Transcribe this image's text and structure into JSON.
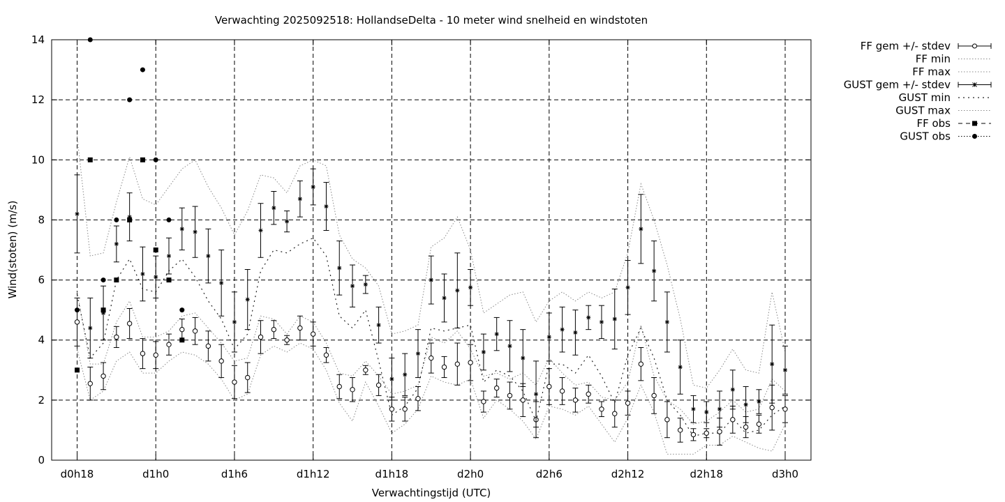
{
  "chart_data": {
    "type": "scatter",
    "title": "Verwachting 2025092518: HollandseDelta - 10 meter wind snelheid en windstoten",
    "xlabel": "Verwachtingstijd (UTC)",
    "ylabel": "Wind(stoten) (m/s)",
    "xlim": [
      18,
      74
    ],
    "ylim": [
      0,
      14
    ],
    "x_unit": "hours since d0h0",
    "xticks": [
      {
        "x": 18,
        "label": "d0h18"
      },
      {
        "x": 24,
        "label": "d1h0"
      },
      {
        "x": 30,
        "label": "d1h6"
      },
      {
        "x": 36,
        "label": "d1h12"
      },
      {
        "x": 42,
        "label": "d1h18"
      },
      {
        "x": 48,
        "label": "d2h0"
      },
      {
        "x": 54,
        "label": "d2h6"
      },
      {
        "x": 60,
        "label": "d2h12"
      },
      {
        "x": 66,
        "label": "d2h18"
      },
      {
        "x": 72,
        "label": "d3h0"
      }
    ],
    "yticks": [
      0,
      2,
      4,
      6,
      8,
      10,
      12,
      14
    ],
    "grid": true,
    "legend_position": "outside-top-right",
    "legend": [
      "FF gem +/- stdev",
      "FF min",
      "FF max",
      "GUST gem +/- stdev",
      "GUST min",
      "GUST max",
      "FF obs",
      "GUST obs"
    ],
    "x": [
      18,
      19,
      20,
      21,
      22,
      23,
      24,
      25,
      26,
      27,
      28,
      29,
      30,
      31,
      32,
      33,
      34,
      35,
      36,
      37,
      38,
      39,
      40,
      41,
      42,
      43,
      44,
      45,
      46,
      47,
      48,
      49,
      50,
      51,
      52,
      53,
      54,
      55,
      56,
      57,
      58,
      59,
      60,
      61,
      62,
      63,
      64,
      65,
      66,
      67,
      68,
      69,
      70,
      71,
      72
    ],
    "series": [
      {
        "name": "FF gem +/- stdev",
        "mean": [
          4.6,
          2.55,
          2.8,
          4.1,
          4.55,
          3.55,
          3.5,
          3.85,
          4.35,
          4.3,
          3.8,
          3.3,
          2.6,
          2.75,
          4.1,
          4.35,
          4.0,
          4.4,
          4.2,
          3.5,
          2.45,
          2.35,
          3.0,
          2.5,
          1.7,
          1.7,
          2.05,
          3.4,
          3.1,
          3.2,
          3.25,
          1.95,
          2.4,
          2.15,
          2.0,
          1.35,
          2.45,
          2.3,
          2.0,
          2.2,
          1.7,
          1.55,
          1.9,
          3.2,
          2.15,
          1.35,
          1.0,
          0.85,
          0.9,
          0.95,
          1.35,
          1.1,
          1.2,
          1.75,
          1.7
        ],
        "stdev": [
          0.8,
          0.55,
          0.45,
          0.35,
          0.5,
          0.5,
          0.45,
          0.35,
          0.35,
          0.45,
          0.5,
          0.55,
          0.55,
          0.5,
          0.55,
          0.3,
          0.15,
          0.4,
          0.4,
          0.25,
          0.4,
          0.4,
          0.15,
          0.35,
          0.4,
          0.4,
          0.4,
          0.5,
          0.35,
          0.7,
          0.6,
          0.35,
          0.3,
          0.45,
          0.55,
          0.6,
          0.6,
          0.45,
          0.4,
          0.3,
          0.25,
          0.45,
          0.4,
          0.55,
          0.6,
          0.6,
          0.4,
          0.2,
          0.15,
          0.45,
          0.45,
          0.35,
          0.3,
          0.75,
          0.45
        ]
      },
      {
        "name": "FF min",
        "values": [
          3.7,
          2.0,
          2.3,
          3.3,
          3.6,
          2.9,
          2.9,
          3.3,
          3.6,
          3.5,
          3.2,
          2.7,
          2.0,
          2.2,
          3.5,
          3.8,
          3.6,
          3.9,
          3.7,
          3.0,
          1.9,
          1.3,
          2.6,
          1.8,
          0.9,
          1.2,
          1.7,
          2.8,
          2.6,
          2.5,
          2.7,
          1.4,
          2.0,
          1.7,
          1.3,
          0.7,
          1.8,
          1.7,
          1.5,
          1.8,
          1.2,
          0.6,
          1.4,
          2.5,
          1.6,
          0.2,
          0.2,
          0.2,
          0.5,
          0.5,
          0.8,
          0.6,
          0.4,
          0.3,
          1.2
        ]
      },
      {
        "name": "FF max",
        "values": [
          5.6,
          3.2,
          3.2,
          4.6,
          5.3,
          4.1,
          4.1,
          4.3,
          4.8,
          4.9,
          4.4,
          3.9,
          3.3,
          3.4,
          4.8,
          4.7,
          4.2,
          4.8,
          4.6,
          3.9,
          2.9,
          2.8,
          3.3,
          2.8,
          2.2,
          2.3,
          2.5,
          4.1,
          3.9,
          4.3,
          3.7,
          2.8,
          2.9,
          2.7,
          2.9,
          2.5,
          3.4,
          2.9,
          2.5,
          2.6,
          2.1,
          2.0,
          2.6,
          4.5,
          2.8,
          2.0,
          1.7,
          1.2,
          1.3,
          1.6,
          2.0,
          1.6,
          1.7,
          2.7,
          2.3
        ]
      },
      {
        "name": "GUST gem +/- stdev",
        "mean": [
          8.2,
          4.4,
          4.9,
          7.2,
          8.1,
          6.2,
          6.1,
          6.8,
          7.7,
          7.6,
          6.8,
          5.9,
          4.6,
          5.35,
          7.65,
          8.4,
          7.95,
          8.7,
          9.1,
          8.45,
          6.4,
          5.8,
          5.85,
          4.5,
          2.7,
          2.85,
          3.55,
          6.0,
          5.4,
          5.65,
          5.75,
          3.6,
          4.2,
          3.8,
          3.4,
          2.2,
          4.1,
          4.35,
          4.25,
          4.75,
          4.6,
          4.7,
          5.75,
          7.7,
          6.3,
          4.6,
          3.1,
          1.7,
          1.6,
          1.7,
          2.35,
          1.85,
          1.95,
          3.2,
          3.0
        ],
        "stdev": [
          1.3,
          1.0,
          0.9,
          0.6,
          0.8,
          0.9,
          0.7,
          0.6,
          0.7,
          0.85,
          0.9,
          1.1,
          1.0,
          1.0,
          0.9,
          0.55,
          0.35,
          0.6,
          0.6,
          0.8,
          0.9,
          0.7,
          0.3,
          0.6,
          0.7,
          0.7,
          0.8,
          0.8,
          0.8,
          1.25,
          0.6,
          0.6,
          0.55,
          0.85,
          0.95,
          1.1,
          0.8,
          0.75,
          0.75,
          0.4,
          0.55,
          1.0,
          0.9,
          1.15,
          1.0,
          1.0,
          0.9,
          0.45,
          0.35,
          0.6,
          0.65,
          0.6,
          0.4,
          1.3,
          0.8
        ]
      },
      {
        "name": "GUST min",
        "values": [
          5.5,
          3.4,
          3.9,
          6.0,
          6.7,
          5.7,
          5.6,
          6.3,
          6.7,
          6.1,
          5.3,
          4.7,
          3.7,
          4.2,
          6.3,
          7.0,
          6.9,
          7.2,
          7.4,
          6.8,
          4.8,
          4.4,
          5.0,
          3.3,
          1.5,
          1.8,
          2.4,
          4.4,
          4.3,
          4.4,
          4.5,
          2.6,
          3.0,
          2.8,
          2.3,
          1.3,
          3.2,
          3.2,
          2.9,
          3.5,
          2.8,
          1.9,
          3.5,
          4.4,
          3.4,
          2.0,
          1.5,
          0.8,
          0.9,
          0.9,
          1.4,
          0.9,
          1.0,
          1.5,
          1.8
        ]
      },
      {
        "name": "GUST max",
        "values": [
          10.8,
          6.8,
          6.9,
          8.6,
          10.1,
          8.7,
          8.5,
          9.1,
          9.7,
          10.0,
          9.1,
          8.4,
          7.5,
          8.3,
          9.5,
          9.4,
          8.9,
          9.8,
          10.0,
          9.8,
          7.5,
          6.7,
          6.4,
          5.8,
          4.2,
          4.3,
          4.5,
          7.1,
          7.4,
          8.1,
          7.0,
          4.9,
          5.2,
          5.5,
          5.6,
          4.6,
          5.3,
          5.6,
          5.3,
          5.6,
          5.4,
          5.6,
          6.9,
          9.2,
          8.0,
          6.5,
          4.7,
          2.5,
          2.4,
          3.0,
          3.7,
          3.0,
          2.9,
          5.6,
          3.6
        ]
      },
      {
        "name": "FF obs",
        "x": [
          18,
          19,
          20,
          21,
          22,
          23,
          24,
          25,
          26
        ],
        "values": [
          3.0,
          10.0,
          5.0,
          6.0,
          8.0,
          10.0,
          7.0,
          6.0,
          4.0
        ]
      },
      {
        "name": "GUST obs",
        "x": [
          18,
          19,
          20,
          21,
          22,
          23,
          24,
          25,
          26
        ],
        "values": [
          5.0,
          14.0,
          6.0,
          8.0,
          12.0,
          13.0,
          10.0,
          8.0,
          5.0
        ]
      }
    ]
  }
}
